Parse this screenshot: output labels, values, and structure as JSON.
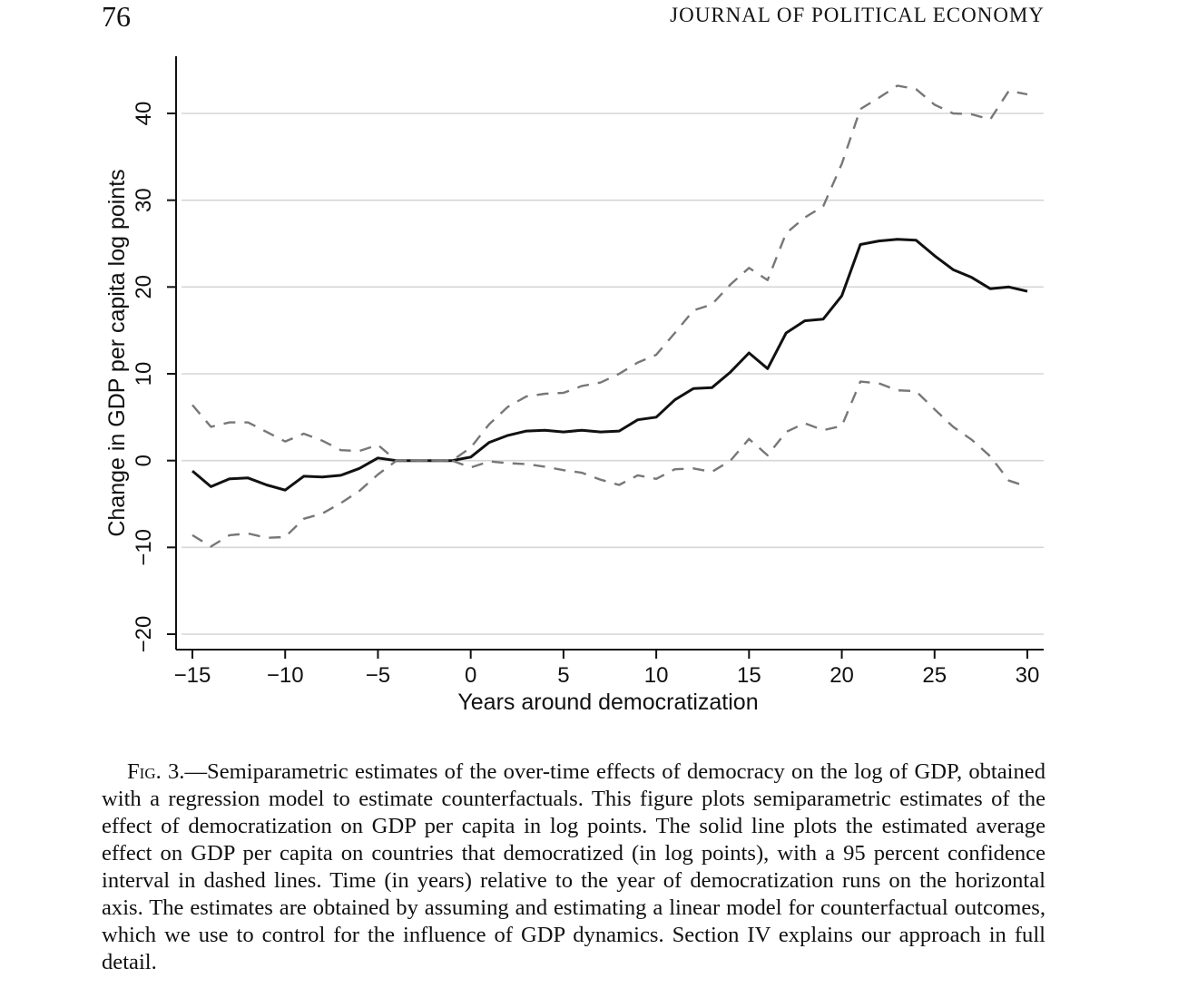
{
  "page": {
    "number": "76",
    "running_head": "JOURNAL OF POLITICAL ECONOMY"
  },
  "colors": {
    "line": "#111111",
    "dashed": "#777777",
    "grid": "#d6d6d6",
    "axis": "#111111"
  },
  "chart_data": {
    "type": "line",
    "title": "",
    "xlabel": "Years around democratization",
    "ylabel": "Change in GDP per capita log points",
    "xlim": [
      -15,
      30
    ],
    "ylim": [
      -20,
      40
    ],
    "xticks": [
      -15,
      -10,
      -5,
      0,
      5,
      10,
      15,
      20,
      25,
      30
    ],
    "xtick_labels": [
      "−15",
      "−10",
      "−5",
      "0",
      "5",
      "10",
      "15",
      "20",
      "25",
      "30"
    ],
    "yticks": [
      -20,
      -10,
      0,
      10,
      20,
      30,
      40
    ],
    "ytick_labels": [
      "−20",
      "−10",
      "0",
      "10",
      "20",
      "30",
      "40"
    ],
    "grid": "horizontal",
    "x": [
      -15,
      -14,
      -13,
      -12,
      -11,
      -10,
      -9,
      -8,
      -7,
      -6,
      -5,
      -4,
      -3,
      -2,
      -1,
      0,
      1,
      2,
      3,
      4,
      5,
      6,
      7,
      8,
      9,
      10,
      11,
      12,
      13,
      14,
      15,
      16,
      17,
      18,
      19,
      20,
      21,
      22,
      23,
      24,
      25,
      26,
      27,
      28,
      29,
      30
    ],
    "series": [
      {
        "name": "Estimated average effect",
        "style": "solid",
        "values": [
          -1.2,
          -3.0,
          -2.1,
          -2.0,
          -2.8,
          -3.4,
          -1.8,
          -1.9,
          -1.7,
          -0.9,
          0.3,
          0.0,
          0.0,
          0.0,
          0.0,
          0.4,
          2.1,
          2.9,
          3.4,
          3.5,
          3.3,
          3.5,
          3.3,
          3.4,
          4.7,
          5.0,
          7.0,
          8.3,
          8.4,
          10.2,
          12.4,
          10.6,
          14.7,
          16.1,
          16.3,
          19.0,
          24.9,
          25.3,
          25.5,
          25.4,
          23.6,
          22.0,
          21.1,
          19.8,
          20.0,
          19.5
        ]
      },
      {
        "name": "Upper 95% confidence bound",
        "style": "dashed",
        "values": [
          6.4,
          3.9,
          4.4,
          4.4,
          3.3,
          2.2,
          3.1,
          2.3,
          1.2,
          1.1,
          1.8,
          0.0,
          0.0,
          0.0,
          0.0,
          1.5,
          4.2,
          6.2,
          7.4,
          7.7,
          7.8,
          8.6,
          9.0,
          10.0,
          11.3,
          12.2,
          14.7,
          17.3,
          18.0,
          20.3,
          22.2,
          20.8,
          26.2,
          28.0,
          29.3,
          34.2,
          40.5,
          41.8,
          43.2,
          42.8,
          41.0,
          40.0,
          39.9,
          39.3,
          42.6,
          42.2
        ]
      },
      {
        "name": "Lower 95% confidence bound",
        "style": "dashed",
        "values": [
          -8.6,
          -9.9,
          -8.6,
          -8.4,
          -8.9,
          -8.8,
          -6.7,
          -6.1,
          -4.9,
          -3.5,
          -1.6,
          0.0,
          0.0,
          0.0,
          0.0,
          -0.8,
          -0.1,
          -0.3,
          -0.4,
          -0.7,
          -1.1,
          -1.4,
          -2.2,
          -2.8,
          -1.7,
          -2.1,
          -1.0,
          -0.9,
          -1.3,
          0.0,
          2.5,
          0.6,
          3.3,
          4.3,
          3.5,
          4.0,
          9.1,
          8.9,
          8.1,
          8.0,
          5.9,
          3.9,
          2.4,
          0.5,
          -2.3,
          -3.0
        ]
      }
    ]
  },
  "caption": {
    "label": "Fig. 3.",
    "text": "—Semiparametric estimates of the over-time effects of democracy on the log of GDP, obtained with a regression model to estimate counterfactuals. This figure plots semiparametric estimates of the effect of democratization on GDP per capita in log points. The solid line plots the estimated average effect on GDP per capita on countries that democratized (in log points), with a 95 percent confidence interval in dashed lines. Time (in years) relative to the year of democratization runs on the horizontal axis. The estimates are obtained by assuming and estimating a linear model for counterfactual outcomes, which we use to control for the influence of GDP dynamics. Section IV explains our approach in full detail."
  }
}
